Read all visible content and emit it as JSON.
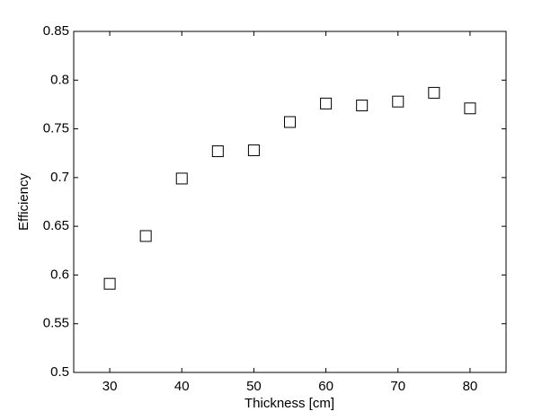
{
  "chart_data": {
    "type": "scatter",
    "x_label": "Thickness [cm]",
    "y_label": "Efficiency",
    "x": [
      30,
      35,
      40,
      45,
      50,
      55,
      60,
      65,
      70,
      75,
      80
    ],
    "values": [
      0.591,
      0.64,
      0.699,
      0.727,
      0.728,
      0.757,
      0.776,
      0.774,
      0.778,
      0.787,
      0.771
    ],
    "color": "#000000",
    "xlim": [
      25,
      85
    ],
    "xticks": [
      30,
      40,
      50,
      60,
      70,
      80
    ],
    "ylim": [
      0.5,
      0.85
    ],
    "yticks": [
      0.5,
      0.55,
      0.6,
      0.65,
      0.7,
      0.75,
      0.8,
      0.85
    ],
    "grid": false
  }
}
